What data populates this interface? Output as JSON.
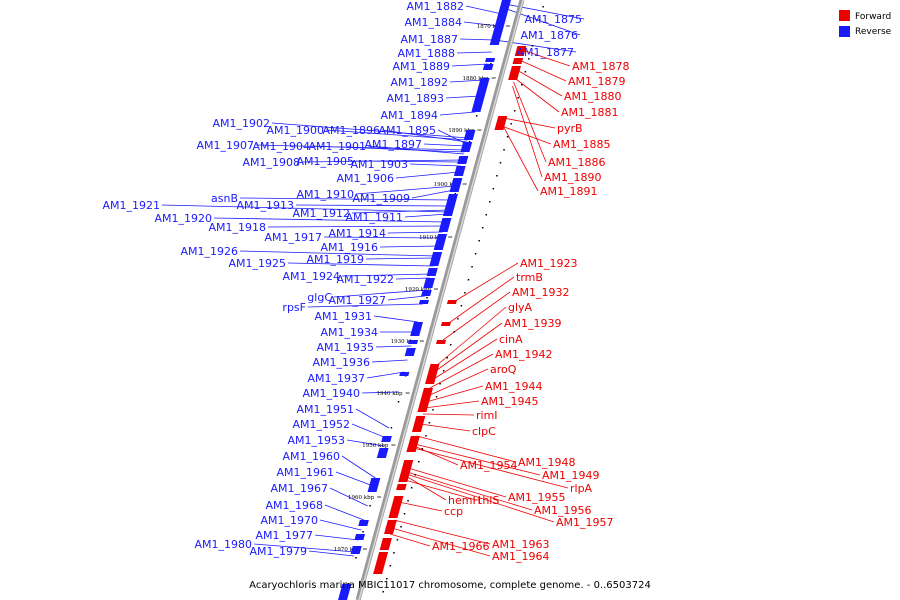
{
  "caption": "Acaryochloris marina MBIC11017 chromosome, complete genome. - 0..6503724",
  "legend": [
    {
      "label": "Forward",
      "color": "#ee0000"
    },
    {
      "label": "Reverse",
      "color": "#1a1aff"
    }
  ],
  "colors": {
    "forward": "#ee0000",
    "reverse": "#1a1aff",
    "backbone": "#9a9a9a"
  },
  "ticks": [
    "1870 kbp",
    "1880 kbp",
    "1890 kbp",
    "1900 kbp",
    "1910 kbp",
    "1920 kbp",
    "1930 kbp",
    "1940 kbp",
    "1950 kbp",
    "1960 kbp",
    "1970 kbp"
  ],
  "reverse_genes": [
    "AM1_1875",
    "AM1_1876",
    "AM1_1877",
    "AM1_1882",
    "AM1_1884",
    "AM1_1887",
    "AM1_1888",
    "AM1_1889",
    "AM1_1892",
    "AM1_1893",
    "AM1_1894",
    "AM1_1902",
    "AM1_1900",
    "AM1_1896",
    "AM1_1895",
    "AM1_1907",
    "AM1_1904",
    "AM1_1901",
    "AM1_1897",
    "AM1_1908",
    "AM1_1905",
    "AM1_1903",
    "AM1_1906",
    "AM1_1910",
    "AM1_1909",
    "asnB",
    "AM1_1921",
    "AM1_1913",
    "AM1_1912",
    "AM1_1911",
    "AM1_1920",
    "AM1_1918",
    "AM1_1914",
    "AM1_1917",
    "AM1_1916",
    "AM1_1926",
    "AM1_1919",
    "AM1_1925",
    "AM1_1924",
    "AM1_1922",
    "glgC",
    "AM1_1927",
    "rpsF",
    "AM1_1931",
    "AM1_1934",
    "AM1_1935",
    "AM1_1936",
    "AM1_1937",
    "AM1_1940",
    "AM1_1951",
    "AM1_1952",
    "AM1_1953",
    "AM1_1960",
    "AM1_1961",
    "AM1_1967",
    "AM1_1968",
    "AM1_1970",
    "AM1_1977",
    "AM1_1980",
    "AM1_1979"
  ],
  "forward_genes": [
    "AM1_1878",
    "AM1_1879",
    "AM1_1880",
    "AM1_1881",
    "pyrB",
    "AM1_1885",
    "AM1_1886",
    "AM1_1890",
    "AM1_1891",
    "AM1_1923",
    "trmB",
    "AM1_1932",
    "glyA",
    "AM1_1939",
    "cinA",
    "AM1_1942",
    "aroQ",
    "AM1_1944",
    "AM1_1945",
    "rimI",
    "clpC",
    "AM1_1948",
    "AM1_1954",
    "AM1_1949",
    "rlpA",
    "AM1_1955",
    "hemH",
    "thiS",
    "AM1_1956",
    "ccp",
    "AM1_1957",
    "AM1_1963",
    "AM1_1966",
    "AM1_1964"
  ]
}
